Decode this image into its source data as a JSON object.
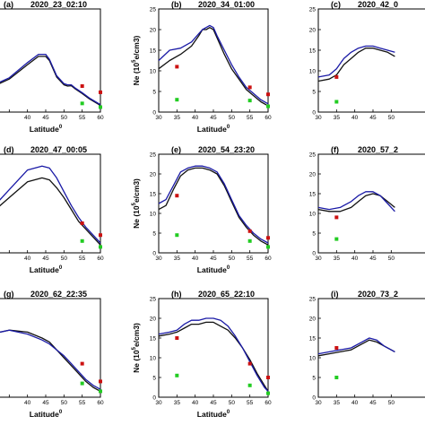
{
  "colors": {
    "observed": "#111111",
    "model_blue": "#1a1aa6",
    "marker_red": "#cc1111",
    "marker_green": "#22cc22"
  },
  "chart_data": [
    {
      "type": "line",
      "panel": "(a)",
      "title": "2020_23_02:10",
      "xlabel": "Latitude",
      "xlabel_sup": "0",
      "ylabel": "",
      "xlim": [
        30,
        60
      ],
      "ylim": [
        0,
        25
      ],
      "xticks": [
        30,
        35,
        40,
        45,
        50,
        55,
        60
      ],
      "xtick_labels": [
        "",
        "",
        "40",
        "45",
        "50",
        "55",
        "60"
      ],
      "yticks": [],
      "ytick_labels": [],
      "series": [
        {
          "style": "line",
          "color": "observed",
          "x": [
            30,
            35,
            40,
            43,
            45,
            46,
            48,
            50,
            51,
            52,
            53,
            55,
            57,
            60
          ],
          "y": [
            6,
            8,
            11.5,
            13.5,
            13.5,
            12.5,
            8.5,
            6.6,
            6.3,
            6.4,
            5.7,
            4.5,
            3.2,
            1.6
          ]
        },
        {
          "style": "line",
          "color": "model_blue",
          "x": [
            30,
            35,
            40,
            43,
            45,
            46,
            48,
            50,
            51,
            52,
            53,
            55,
            57,
            60
          ],
          "y": [
            6.3,
            8.3,
            12,
            14,
            14,
            12.8,
            8.8,
            6.9,
            6.6,
            6.6,
            5.9,
            4.7,
            3.4,
            1.8
          ]
        },
        {
          "style": "marker",
          "color": "marker_red",
          "x": [
            55,
            60
          ],
          "y": [
            6.3,
            4.8
          ]
        },
        {
          "style": "marker",
          "color": "marker_green",
          "x": [
            55,
            60
          ],
          "y": [
            2.1,
            1.2
          ]
        }
      ]
    },
    {
      "type": "line",
      "panel": "(b)",
      "title": "2020_34_01:00",
      "xlabel": "Latitude",
      "xlabel_sup": "0",
      "ylabel": "Ne (10^5e/cm3)",
      "xlim": [
        30,
        60
      ],
      "ylim": [
        0,
        25
      ],
      "xticks": [
        30,
        35,
        40,
        45,
        50,
        55,
        60
      ],
      "xtick_labels": [
        "30",
        "35",
        "40",
        "45",
        "50",
        "55",
        "60"
      ],
      "yticks": [
        0,
        5,
        10,
        15,
        20,
        25
      ],
      "ytick_labels": [
        "0",
        "5",
        "10",
        "15",
        "20",
        "25"
      ],
      "series": [
        {
          "style": "line",
          "color": "observed",
          "x": [
            30,
            33,
            36,
            39,
            41,
            42,
            43,
            44,
            45,
            46,
            48,
            50,
            52,
            54,
            56,
            58,
            60
          ],
          "y": [
            10.5,
            12.5,
            14,
            16,
            18.5,
            20,
            20,
            20.5,
            20,
            18,
            14,
            10.5,
            8,
            5.5,
            4,
            2.5,
            1.5
          ]
        },
        {
          "style": "line",
          "color": "model_blue",
          "x": [
            30,
            33,
            36,
            39,
            41,
            42,
            43,
            44,
            45,
            46,
            48,
            50,
            52,
            54,
            56,
            58,
            60
          ],
          "y": [
            12.5,
            15,
            15.5,
            17,
            19,
            20,
            20.5,
            21,
            20.5,
            18.5,
            15,
            11.5,
            8.5,
            6,
            4.5,
            3,
            2
          ]
        },
        {
          "style": "marker",
          "color": "marker_red",
          "x": [
            35,
            55,
            60
          ],
          "y": [
            11,
            6,
            4.3
          ]
        },
        {
          "style": "marker",
          "color": "marker_green",
          "x": [
            35,
            55,
            60
          ],
          "y": [
            3,
            2.8,
            1.4
          ]
        }
      ]
    },
    {
      "type": "line",
      "panel": "(c)",
      "title": "2020_42_0",
      "xlabel": "",
      "xlabel_sup": "",
      "ylabel": "",
      "xlim": [
        30,
        60
      ],
      "ylim": [
        0,
        25
      ],
      "xticks": [
        30,
        35,
        40,
        45,
        50
      ],
      "xtick_labels": [
        "30",
        "35",
        "40",
        "45",
        "50"
      ],
      "yticks": [
        0,
        5,
        10,
        15,
        20,
        25
      ],
      "ytick_labels": [
        "0",
        "5",
        "10",
        "15",
        "20",
        "25"
      ],
      "series": [
        {
          "style": "line",
          "color": "observed",
          "x": [
            30,
            33,
            35,
            37,
            39,
            41,
            43,
            45,
            47,
            49,
            51
          ],
          "y": [
            7.5,
            8,
            9,
            11.5,
            13,
            14.5,
            15.5,
            15.5,
            15,
            14.5,
            13.5
          ]
        },
        {
          "style": "line",
          "color": "model_blue",
          "x": [
            30,
            33,
            35,
            37,
            39,
            41,
            43,
            45,
            47,
            49,
            51
          ],
          "y": [
            8.5,
            9,
            10.5,
            13,
            14.5,
            15.5,
            16,
            16,
            15.5,
            15,
            14.5
          ]
        },
        {
          "style": "marker",
          "color": "marker_red",
          "x": [
            35
          ],
          "y": [
            8.5
          ]
        },
        {
          "style": "marker",
          "color": "marker_green",
          "x": [
            35
          ],
          "y": [
            2.5
          ]
        }
      ]
    },
    {
      "type": "line",
      "panel": "(d)",
      "title": "2020_47_00:05",
      "xlabel": "Latitude",
      "xlabel_sup": "0",
      "ylabel": "",
      "xlim": [
        30,
        60
      ],
      "ylim": [
        0,
        25
      ],
      "xticks": [
        30,
        35,
        40,
        45,
        50,
        55,
        60
      ],
      "xtick_labels": [
        "",
        "",
        "40",
        "45",
        "50",
        "55",
        "60"
      ],
      "yticks": [],
      "ytick_labels": [],
      "series": [
        {
          "style": "line",
          "color": "observed",
          "x": [
            30,
            35,
            40,
            44,
            46,
            48,
            50,
            52,
            54,
            56,
            58,
            60
          ],
          "y": [
            10,
            14,
            18,
            19,
            18.5,
            16.5,
            14,
            11,
            8,
            6,
            4,
            2
          ]
        },
        {
          "style": "line",
          "color": "model_blue",
          "x": [
            30,
            35,
            40,
            44,
            46,
            48,
            50,
            52,
            54,
            56,
            58,
            60
          ],
          "y": [
            11,
            16,
            21,
            22,
            21.5,
            19,
            15.5,
            12,
            9,
            6.5,
            4.5,
            2.5
          ]
        },
        {
          "style": "marker",
          "color": "marker_red",
          "x": [
            55,
            60
          ],
          "y": [
            7.5,
            4.5
          ]
        },
        {
          "style": "marker",
          "color": "marker_green",
          "x": [
            55,
            60
          ],
          "y": [
            3,
            1.5
          ]
        }
      ]
    },
    {
      "type": "line",
      "panel": "(e)",
      "title": "2020_54_23:20",
      "xlabel": "Latitude",
      "xlabel_sup": "0",
      "ylabel": "Ne (10^5e/cm3)",
      "xlim": [
        30,
        60
      ],
      "ylim": [
        0,
        25
      ],
      "xticks": [
        30,
        35,
        40,
        45,
        50,
        55,
        60
      ],
      "xtick_labels": [
        "30",
        "35",
        "40",
        "45",
        "50",
        "55",
        "60"
      ],
      "yticks": [
        0,
        5,
        10,
        15,
        20,
        25
      ],
      "ytick_labels": [
        "0",
        "5",
        "10",
        "15",
        "20",
        "25"
      ],
      "series": [
        {
          "style": "line",
          "color": "observed",
          "x": [
            30,
            32,
            34,
            36,
            38,
            40,
            42,
            44,
            46,
            48,
            50,
            52,
            54,
            56,
            58,
            60
          ],
          "y": [
            11,
            12,
            16,
            19.5,
            21,
            21.5,
            21.5,
            21,
            20,
            17,
            13,
            9,
            6.5,
            4.5,
            3,
            2
          ]
        },
        {
          "style": "line",
          "color": "model_blue",
          "x": [
            30,
            32,
            34,
            36,
            38,
            40,
            42,
            44,
            46,
            48,
            50,
            52,
            54,
            56,
            58,
            60
          ],
          "y": [
            12.5,
            13.5,
            17,
            20.5,
            21.5,
            22,
            22,
            21.5,
            20.5,
            17.5,
            13.5,
            9.5,
            7,
            5,
            3.5,
            2.5
          ]
        },
        {
          "style": "marker",
          "color": "marker_red",
          "x": [
            35,
            55,
            60
          ],
          "y": [
            14.5,
            5.5,
            3.8
          ]
        },
        {
          "style": "marker",
          "color": "marker_green",
          "x": [
            35,
            55,
            60
          ],
          "y": [
            4.5,
            3,
            1.5
          ]
        }
      ]
    },
    {
      "type": "line",
      "panel": "(f)",
      "title": "2020_57_2",
      "xlabel": "",
      "xlabel_sup": "",
      "ylabel": "",
      "xlim": [
        30,
        60
      ],
      "ylim": [
        0,
        25
      ],
      "xticks": [
        30,
        35,
        40,
        45,
        50
      ],
      "xtick_labels": [
        "30",
        "35",
        "40",
        "45",
        "50"
      ],
      "yticks": [
        0,
        5,
        10,
        15,
        20,
        25
      ],
      "ytick_labels": [
        "0",
        "5",
        "10",
        "15",
        "20",
        "25"
      ],
      "series": [
        {
          "style": "line",
          "color": "observed",
          "x": [
            30,
            33,
            36,
            39,
            41,
            43,
            45,
            47,
            49,
            51
          ],
          "y": [
            11,
            10.5,
            10.5,
            11.5,
            13,
            14.5,
            15,
            14.5,
            13,
            11.5
          ]
        },
        {
          "style": "line",
          "color": "model_blue",
          "x": [
            30,
            33,
            36,
            39,
            41,
            43,
            45,
            47,
            49,
            51
          ],
          "y": [
            11.5,
            11,
            11.5,
            13,
            14.5,
            15.5,
            15.5,
            14.5,
            12.5,
            10.5
          ]
        },
        {
          "style": "marker",
          "color": "marker_red",
          "x": [
            35
          ],
          "y": [
            9
          ]
        },
        {
          "style": "marker",
          "color": "marker_green",
          "x": [
            35
          ],
          "y": [
            3.5
          ]
        }
      ]
    },
    {
      "type": "line",
      "panel": "(g)",
      "title": "2020_62_22:35",
      "xlabel": "Latitude",
      "xlabel_sup": "0",
      "ylabel": "",
      "xlim": [
        30,
        60
      ],
      "ylim": [
        0,
        25
      ],
      "xticks": [
        30,
        35,
        40,
        45,
        50,
        55,
        60
      ],
      "xtick_labels": [
        "",
        "",
        "40",
        "45",
        "50",
        "55",
        "60"
      ],
      "yticks": [],
      "ytick_labels": [],
      "series": [
        {
          "style": "line",
          "color": "observed",
          "x": [
            30,
            35,
            40,
            44,
            46,
            48,
            50,
            52,
            54,
            56,
            58,
            60
          ],
          "y": [
            16,
            17,
            16.5,
            15,
            14,
            12,
            10,
            8,
            6,
            4,
            2.5,
            1.5
          ]
        },
        {
          "style": "line",
          "color": "model_blue",
          "x": [
            30,
            35,
            40,
            44,
            46,
            48,
            50,
            52,
            54,
            56,
            58,
            60
          ],
          "y": [
            16,
            17,
            16,
            14.5,
            13.5,
            12,
            10.5,
            8.5,
            6.5,
            4.5,
            3,
            2
          ]
        },
        {
          "style": "marker",
          "color": "marker_red",
          "x": [
            55,
            60
          ],
          "y": [
            8.5,
            4
          ]
        },
        {
          "style": "marker",
          "color": "marker_green",
          "x": [
            55,
            60
          ],
          "y": [
            3.5,
            1.5
          ]
        }
      ]
    },
    {
      "type": "line",
      "panel": "(h)",
      "title": "2020_65_22:10",
      "xlabel": "Latitude",
      "xlabel_sup": "0",
      "ylabel": "Ne (10^5e/cm3)",
      "xlim": [
        30,
        60
      ],
      "ylim": [
        0,
        25
      ],
      "xticks": [
        30,
        35,
        40,
        45,
        50,
        55,
        60
      ],
      "xtick_labels": [
        "30",
        "35",
        "40",
        "45",
        "50",
        "55",
        "60"
      ],
      "yticks": [
        0,
        5,
        10,
        15,
        20,
        25
      ],
      "ytick_labels": [
        "0",
        "5",
        "10",
        "15",
        "20",
        "25"
      ],
      "series": [
        {
          "style": "line",
          "color": "observed",
          "x": [
            30,
            33,
            35,
            37,
            39,
            41,
            43,
            45,
            47,
            49,
            51,
            53,
            55,
            57,
            59,
            60
          ],
          "y": [
            15.5,
            16,
            16.5,
            17.5,
            18.5,
            18.5,
            19,
            19,
            18,
            17,
            15,
            12.5,
            9.5,
            6,
            3,
            1.5
          ]
        },
        {
          "style": "line",
          "color": "model_blue",
          "x": [
            30,
            33,
            35,
            37,
            39,
            41,
            43,
            45,
            47,
            49,
            51,
            53,
            55,
            57,
            59,
            60
          ],
          "y": [
            16,
            16.5,
            17,
            18.5,
            19.5,
            19.5,
            20,
            20,
            19.5,
            18,
            15.5,
            12.5,
            9,
            5.5,
            2.5,
            1.5
          ]
        },
        {
          "style": "marker",
          "color": "marker_red",
          "x": [
            35,
            55,
            60
          ],
          "y": [
            15,
            8.5,
            5
          ]
        },
        {
          "style": "marker",
          "color": "marker_green",
          "x": [
            35,
            55,
            60
          ],
          "y": [
            5.5,
            3,
            1
          ]
        }
      ]
    },
    {
      "type": "line",
      "panel": "(i)",
      "title": "2020_73_2",
      "xlabel": "",
      "xlabel_sup": "",
      "ylabel": "",
      "xlim": [
        30,
        60
      ],
      "ylim": [
        0,
        25
      ],
      "xticks": [
        30,
        35,
        40,
        45,
        50
      ],
      "xtick_labels": [
        "30",
        "35",
        "40",
        "45",
        "50"
      ],
      "yticks": [
        0,
        5,
        10,
        15,
        20,
        25
      ],
      "ytick_labels": [
        "0",
        "5",
        "10",
        "15",
        "20",
        "25"
      ],
      "series": [
        {
          "style": "line",
          "color": "observed",
          "x": [
            30,
            33,
            36,
            39,
            42,
            44,
            46,
            48,
            50,
            51
          ],
          "y": [
            10.5,
            11,
            11.5,
            12,
            13.5,
            14.5,
            14,
            13,
            12,
            11.5
          ]
        },
        {
          "style": "line",
          "color": "model_blue",
          "x": [
            30,
            33,
            36,
            39,
            42,
            44,
            46,
            48,
            50,
            51
          ],
          "y": [
            11,
            11.5,
            12,
            12.5,
            14,
            15,
            14.5,
            13,
            12,
            11.5
          ]
        },
        {
          "style": "marker",
          "color": "marker_red",
          "x": [
            35
          ],
          "y": [
            12.5
          ]
        },
        {
          "style": "marker",
          "color": "marker_green",
          "x": [
            35
          ],
          "y": [
            5
          ]
        }
      ]
    }
  ]
}
